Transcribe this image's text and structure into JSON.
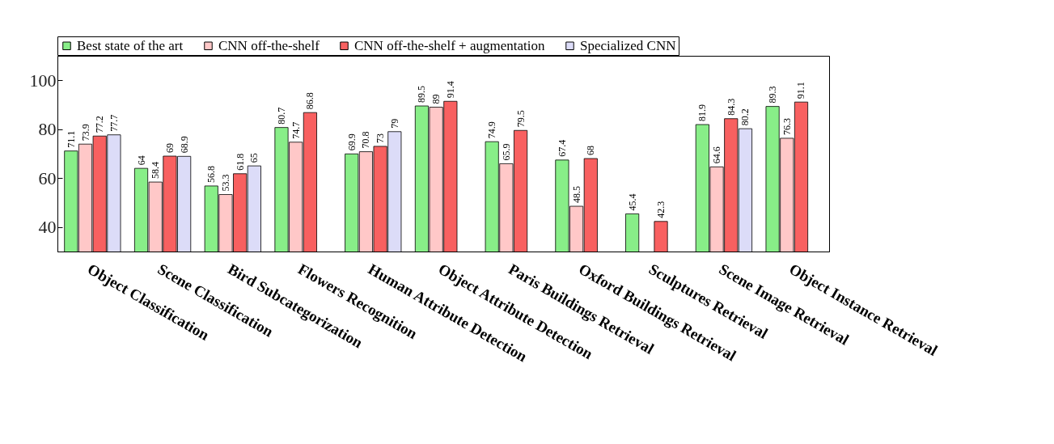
{
  "chart_data": {
    "type": "bar",
    "categories": [
      "Object Classification",
      "Scene Classification",
      "Bird Subcategorization",
      "Flowers Recognition",
      "Human Attribute Detection",
      "Object Attribute Detection",
      "Paris Buildings Retrieval",
      "Oxford Buildings Retrieval",
      "Sculptures Retrieval",
      "Scene Image Retrieval",
      "Object Instance Retrieval"
    ],
    "series": [
      {
        "name": "Best state of the art",
        "color": "#88ee88",
        "values": [
          71.1,
          64,
          56.8,
          80.7,
          69.9,
          89.5,
          74.9,
          67.4,
          45.4,
          81.9,
          89.3
        ]
      },
      {
        "name": "CNN off-the-shelf",
        "color": "#ffc8c8",
        "values": [
          73.9,
          58.4,
          53.3,
          74.7,
          70.8,
          89,
          65.9,
          48.5,
          null,
          64.6,
          76.3
        ]
      },
      {
        "name": "CNN off-the-shelf + augmentation",
        "color": "#f86060",
        "values": [
          77.2,
          69,
          61.8,
          86.8,
          73,
          91.4,
          79.5,
          68,
          42.3,
          84.3,
          91.1
        ]
      },
      {
        "name": "Specialized CNN",
        "color": "#dcdcf8",
        "values": [
          77.7,
          68.9,
          65,
          null,
          79,
          null,
          null,
          null,
          null,
          80.2,
          null
        ]
      }
    ],
    "ylim": [
      30,
      110
    ],
    "yticks": [
      40,
      60,
      80,
      100
    ],
    "grid": false,
    "legend": "top",
    "data_labels": true
  }
}
